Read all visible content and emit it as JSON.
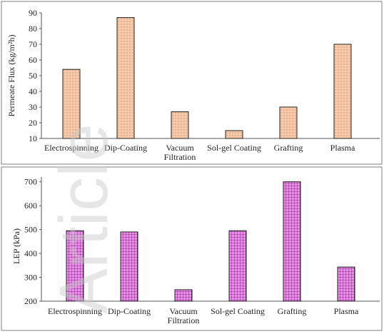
{
  "watermark": "Article",
  "chart_data": [
    {
      "type": "bar",
      "ylabel": "Permeate Flux (kg/m²h)",
      "xlabel": "",
      "ylim": [
        10,
        90
      ],
      "yticks": [
        "10",
        "20",
        "30",
        "40",
        "50",
        "60",
        "70",
        "80",
        "90"
      ],
      "categories": [
        [
          "Electrospinning"
        ],
        [
          "Dip-Coating"
        ],
        [
          "Vacuum",
          "Filtration"
        ],
        [
          "Sol-gel Coating"
        ],
        [
          "Grafting"
        ],
        [
          "Plasma"
        ]
      ],
      "values": [
        54,
        87,
        27,
        15,
        30,
        70
      ],
      "bar_fill": "#f7c9a8",
      "bar_pattern": "dots",
      "grid": false
    },
    {
      "type": "bar",
      "ylabel": "LEP (kPa)",
      "xlabel": "",
      "ylim": [
        200,
        720
      ],
      "yticks": [
        "200",
        "300",
        "400",
        "500",
        "600",
        "700"
      ],
      "categories": [
        [
          "Electrospinning"
        ],
        [
          "Dip-Coating"
        ],
        [
          "Vacuum",
          "Filtration"
        ],
        [
          "Sol-gel Coating"
        ],
        [
          "Grafting"
        ],
        [
          "Plasma"
        ]
      ],
      "values": [
        495,
        490,
        248,
        495,
        700,
        343
      ],
      "bar_fill": "#f08cf0",
      "bar_pattern": "grid",
      "grid": false
    }
  ]
}
